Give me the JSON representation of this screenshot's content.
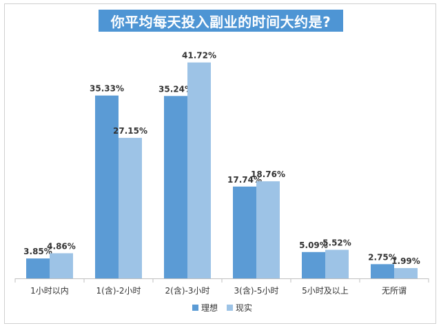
{
  "chart_data": {
    "type": "bar",
    "title": "你平均每天投入副业的时间大约是?",
    "categories": [
      "1小时以内",
      "1(含)-2小时",
      "2(含)-3小时",
      "3(含)-5小时",
      "5小时及以上",
      "无所谓"
    ],
    "series": [
      {
        "name": "理想",
        "values": [
          3.85,
          35.33,
          35.24,
          17.74,
          5.09,
          2.75
        ],
        "labels": [
          "3.85%",
          "35.33%",
          "35.24%",
          "17.74%",
          "5.09%",
          "2.75%"
        ],
        "color": "#5b9bd5"
      },
      {
        "name": "现实",
        "values": [
          4.86,
          27.15,
          41.72,
          18.76,
          5.52,
          1.99
        ],
        "labels": [
          "4.86%",
          "27.15%",
          "41.72%",
          "18.76%",
          "5.52%",
          "1.99%"
        ],
        "color": "#9dc3e6"
      }
    ],
    "ylim": [
      0,
      45
    ],
    "grid": false,
    "legend": "bottom-center",
    "title_bg_color": "#4e95d4"
  }
}
